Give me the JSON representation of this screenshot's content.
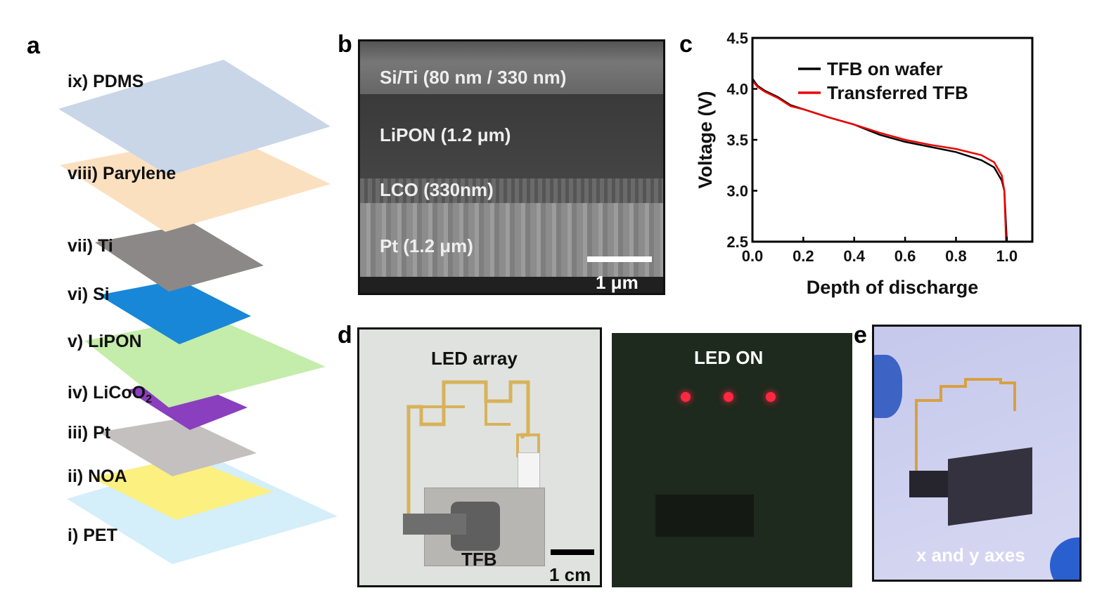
{
  "panels": {
    "a": "a",
    "b": "b",
    "c": "c",
    "d": "d",
    "e": "e"
  },
  "layers": [
    {
      "label": "i) PET",
      "color": "#d4eefa"
    },
    {
      "label": "ii) NOA",
      "color": "#fcf080"
    },
    {
      "label": "iii) Pt",
      "color": "#c4c0c0"
    },
    {
      "label": "iv) LiCoO",
      "sub": "2",
      "color": "#8a3fbe"
    },
    {
      "label": "v) LiPON",
      "color": "#c4ecaa"
    },
    {
      "label": "vi) Si",
      "color": "#1887d8"
    },
    {
      "label": "vii) Ti",
      "color": "#8c8887"
    },
    {
      "label": "viii) Parylene",
      "color": "#fbe0c0"
    },
    {
      "label": "ix) PDMS",
      "color": "#c9d6e8"
    }
  ],
  "sem": {
    "layers": [
      "Si/Ti (80 nm / 330 nm)",
      "LiPON (1.2 μm)",
      "LCO (330nm)",
      "Pt (1.2 μm)"
    ],
    "scale_bar": "1 μm"
  },
  "photos": {
    "d1": {
      "title": "LED array",
      "device": "TFB",
      "scale_bar": "1 cm"
    },
    "d2": {
      "title": "LED ON"
    },
    "e": {
      "caption": "x and y axes"
    }
  },
  "chart_data": {
    "type": "line",
    "xlabel": "Depth of discharge",
    "ylabel": "Voltage (V)",
    "xlim": [
      0,
      1.1
    ],
    "ylim": [
      2.5,
      4.5
    ],
    "xticks": [
      "0.0",
      "0.2",
      "0.4",
      "0.6",
      "0.8",
      "1.0"
    ],
    "yticks": [
      "2.5",
      "3.0",
      "3.5",
      "4.0",
      "4.5"
    ],
    "legend_position": "top-right",
    "series": [
      {
        "name": "TFB on wafer",
        "color": "#000000",
        "x": [
          0,
          0.02,
          0.05,
          0.1,
          0.15,
          0.2,
          0.3,
          0.4,
          0.5,
          0.6,
          0.7,
          0.8,
          0.9,
          0.95,
          0.98,
          0.99,
          1.0
        ],
        "y": [
          4.1,
          4.03,
          3.98,
          3.92,
          3.84,
          3.8,
          3.72,
          3.65,
          3.55,
          3.48,
          3.43,
          3.38,
          3.3,
          3.23,
          3.1,
          3.0,
          2.5
        ]
      },
      {
        "name": "Transferred TFB",
        "color": "#ee0000",
        "x": [
          0,
          0.02,
          0.05,
          0.1,
          0.15,
          0.2,
          0.3,
          0.4,
          0.5,
          0.6,
          0.7,
          0.8,
          0.9,
          0.95,
          0.98,
          0.99,
          0.997
        ],
        "y": [
          4.08,
          4.02,
          3.97,
          3.91,
          3.83,
          3.8,
          3.72,
          3.65,
          3.57,
          3.5,
          3.45,
          3.41,
          3.35,
          3.28,
          3.15,
          3.0,
          2.5
        ]
      }
    ]
  }
}
